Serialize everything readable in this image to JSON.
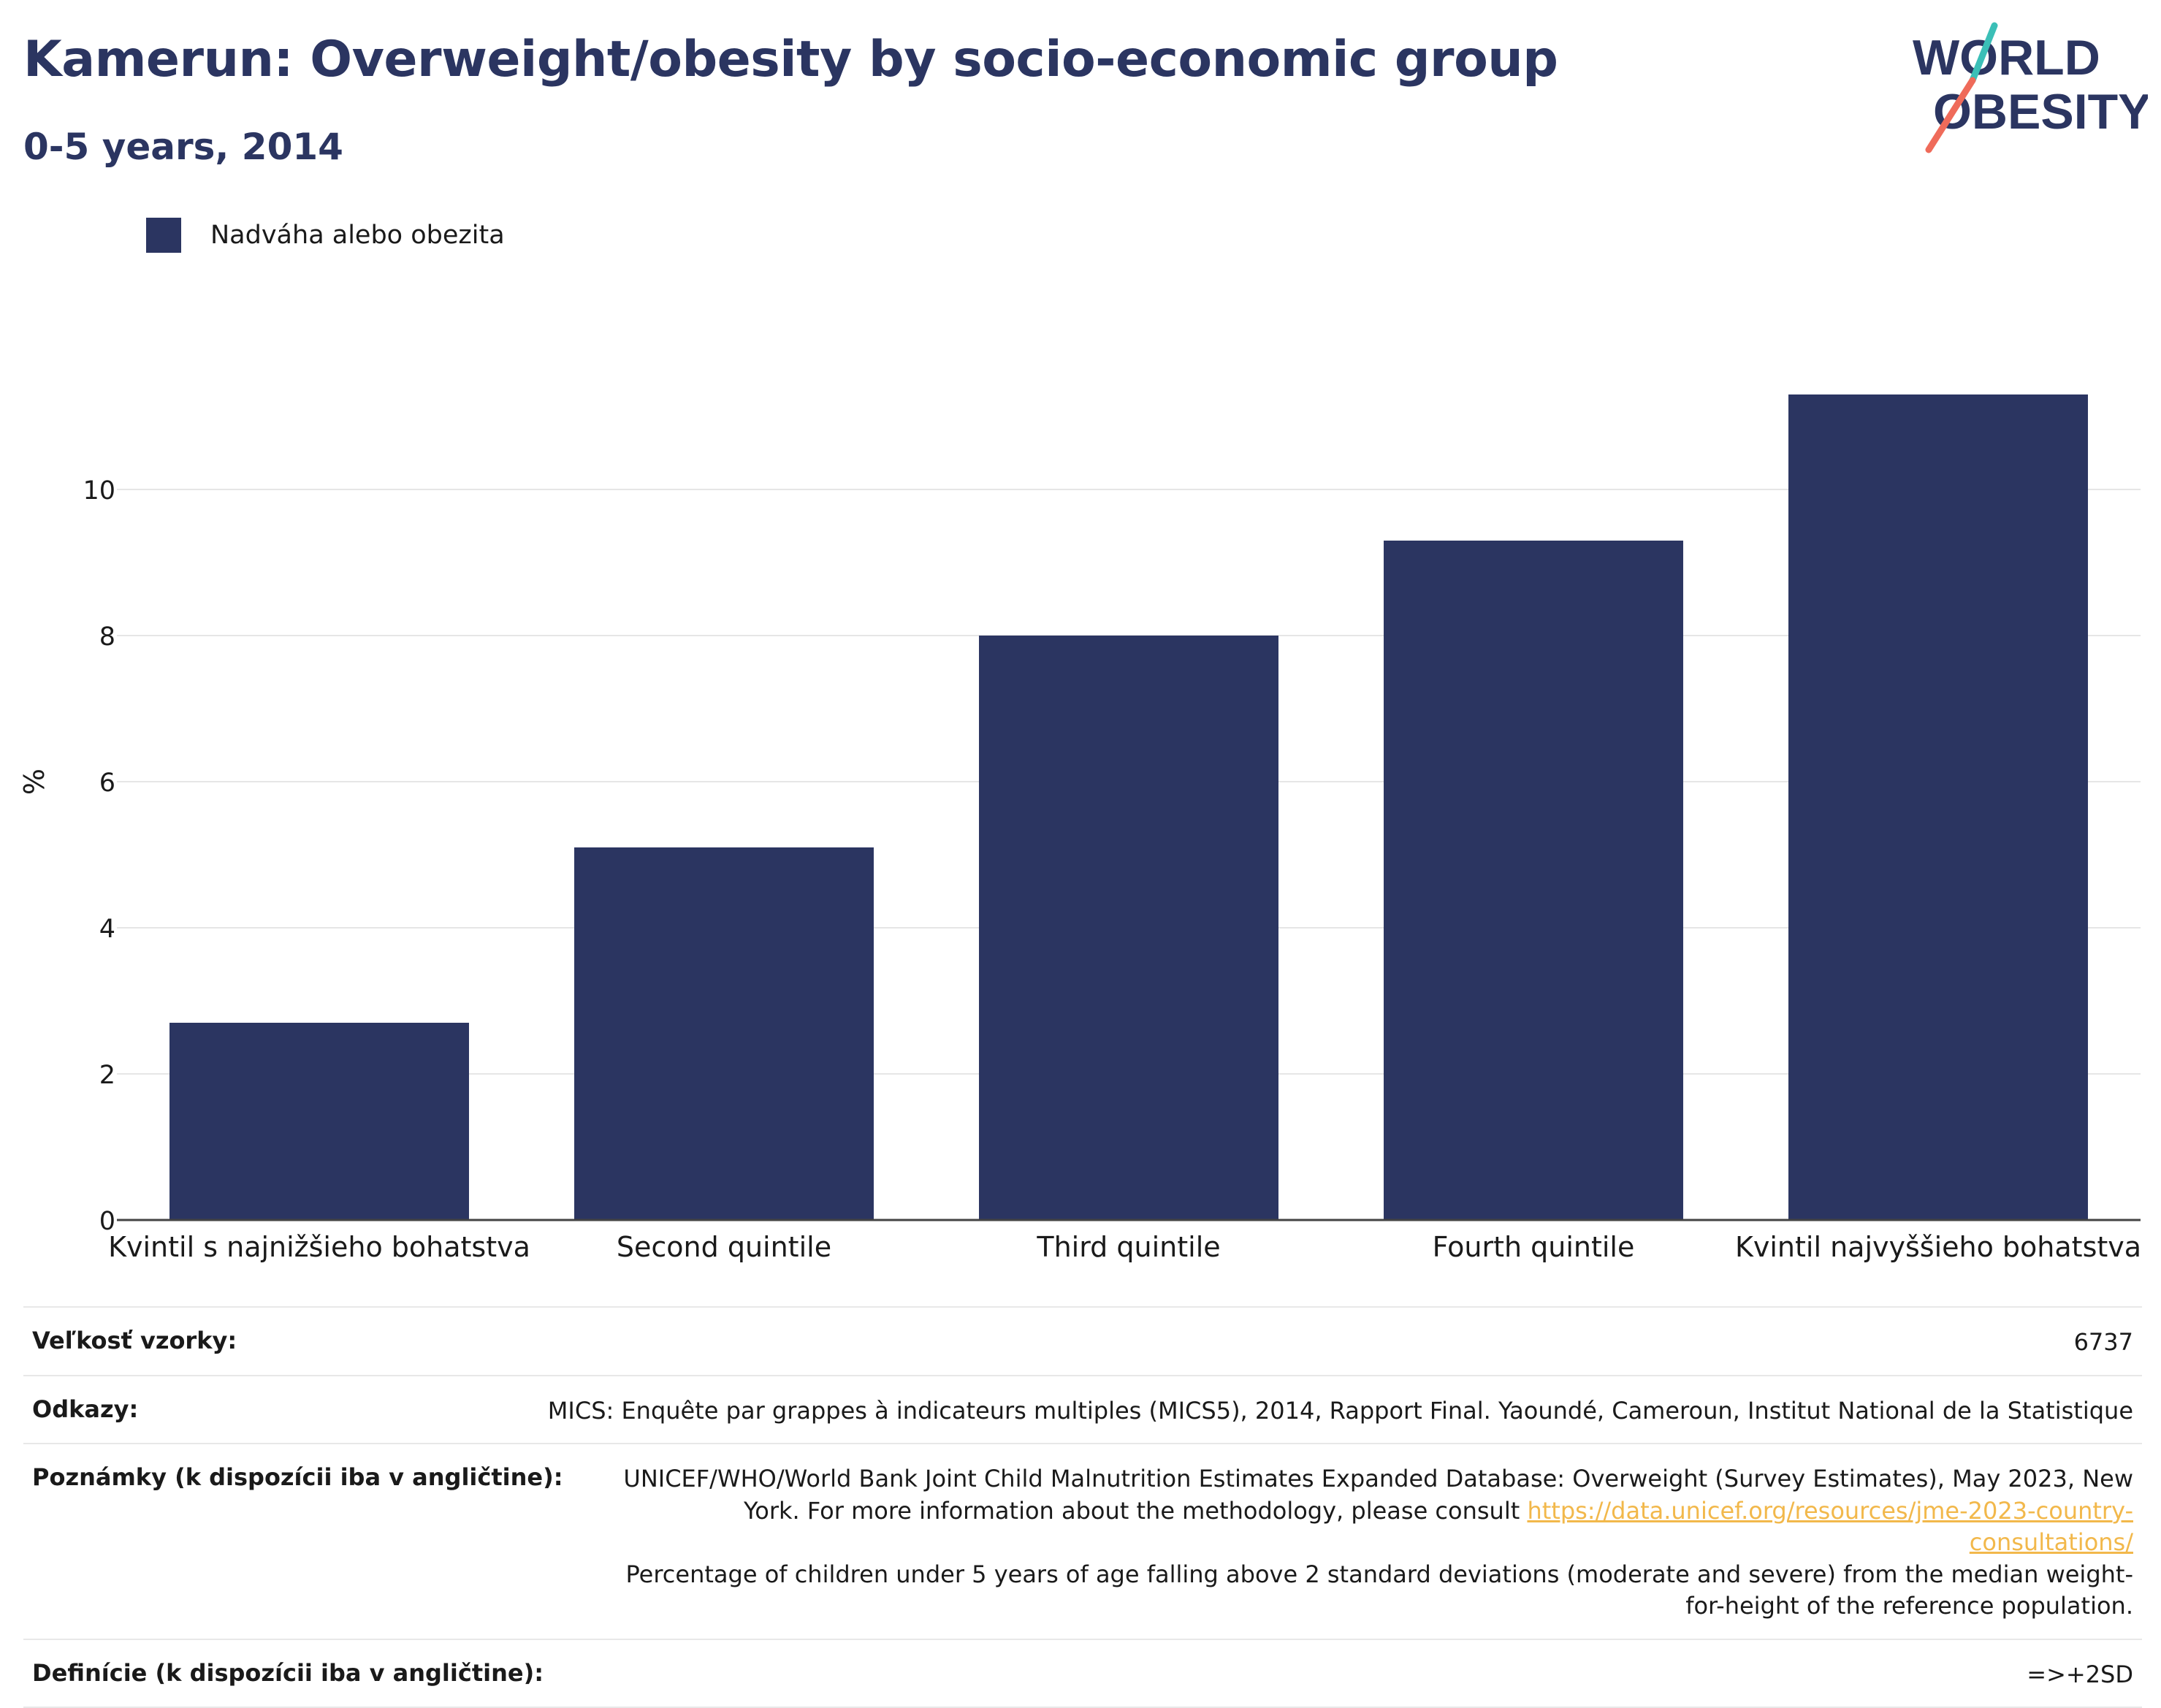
{
  "header": {
    "title": "Kamerun: Overweight/obesity by socio-economic group",
    "subtitle": "0-5 years, 2014"
  },
  "logo": {
    "line1": "WORLD",
    "line2": "OBESITY",
    "colors": {
      "text": "#2b3561",
      "slash_teal": "#3bbfb7",
      "slash_coral": "#ef6b5a"
    }
  },
  "legend": {
    "label": "Nadváha alebo obezita"
  },
  "chart_data": {
    "type": "bar",
    "categories": [
      "Kvintil s najnižšieho bohatstva",
      "Second quintile",
      "Third quintile",
      "Fourth quintile",
      "Kvintil najvyššieho bohatstva"
    ],
    "series": [
      {
        "name": "Nadváha alebo obezita",
        "values": [
          2.7,
          5.1,
          8.0,
          9.3,
          11.3
        ],
        "color": "#2b3561"
      }
    ],
    "ylabel": "%",
    "ylim": [
      0,
      12
    ],
    "yticks": [
      0,
      2,
      4,
      6,
      8,
      10
    ],
    "grid": true,
    "legend_position": "top-left"
  },
  "meta": {
    "sample_size_label": "Veľkosť vzorky:",
    "sample_size_value": "6737",
    "references_label": "Odkazy:",
    "references_value": "MICS: Enquête par grappes à indicateurs multiples (MICS5), 2014, Rapport Final. Yaoundé, Cameroun, Institut National de la Statistique",
    "notes_label": "Poznámky (k dispozícii iba v angličtine):",
    "notes_text_before": "UNICEF/WHO/World Bank Joint Child Malnutrition Estimates Expanded Database: Overweight (Survey Estimates), May 2023, New York. For more information about the methodology, please consult",
    "notes_link": "https://data.unicef.org/resources/jme-2023-country-consultations/",
    "notes_text_after": "Percentage of children under 5 years of age falling above 2 standard deviations (moderate and severe) from the median weight-for-height of the reference population.",
    "definitions_label": "Definície (k dispozícii iba v angličtine):",
    "definitions_value": "=>+2SD"
  }
}
